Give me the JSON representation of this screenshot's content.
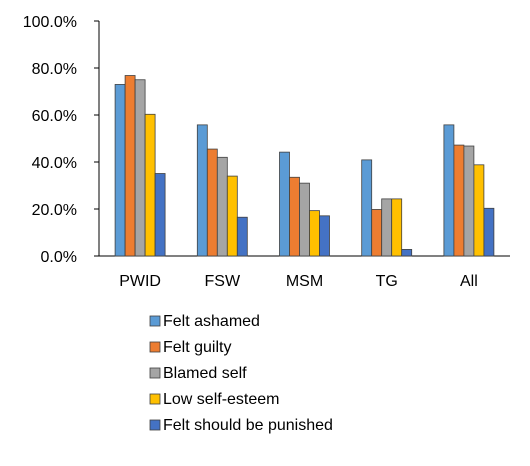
{
  "chart_data": {
    "type": "bar",
    "title": "",
    "xlabel": "",
    "ylabel": "",
    "ylim": [
      0,
      100
    ],
    "yticks": [
      "0.0%",
      "20.0%",
      "40.0%",
      "60.0%",
      "80.0%",
      "100.0%"
    ],
    "ytick_values": [
      0,
      20,
      40,
      60,
      80,
      100
    ],
    "grid": false,
    "legend_position": "bottom",
    "categories": [
      "PWID",
      "FSW",
      "MSM",
      "TG",
      "All"
    ],
    "series": [
      {
        "name": "Felt ashamed",
        "color": "#5B9BD5",
        "values": [
          73.0,
          55.8,
          44.2,
          40.9,
          55.8
        ]
      },
      {
        "name": "Felt guilty",
        "color": "#ED7D31",
        "values": [
          76.8,
          45.5,
          33.5,
          19.8,
          47.2
        ]
      },
      {
        "name": "Blamed self",
        "color": "#A5A5A5",
        "values": [
          75.0,
          42.0,
          31.0,
          24.3,
          46.8
        ]
      },
      {
        "name": "Low self-esteem",
        "color": "#FFC000",
        "values": [
          60.3,
          34.0,
          19.3,
          24.3,
          38.8
        ]
      },
      {
        "name": "Felt should be punished",
        "color": "#4472C4",
        "values": [
          35.1,
          16.5,
          17.1,
          2.8,
          20.3
        ]
      }
    ]
  }
}
